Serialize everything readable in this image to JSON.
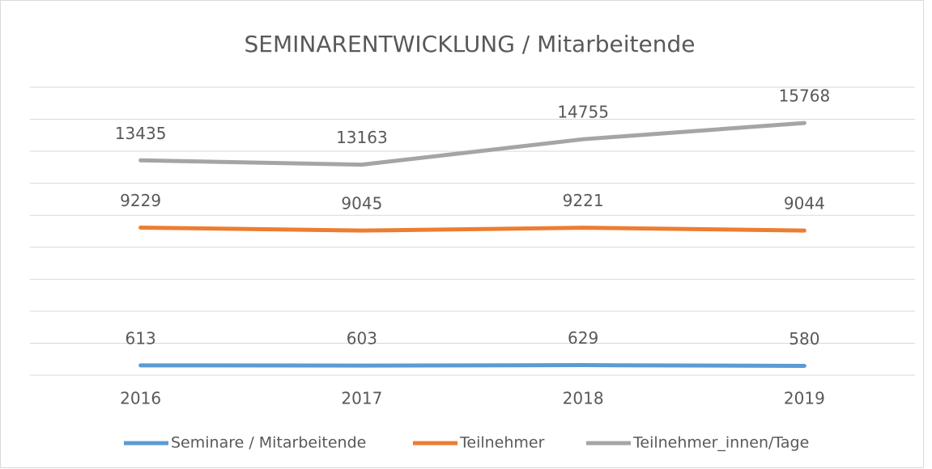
{
  "chart_data": {
    "type": "line",
    "title": "SEMINARENTWICKLUNG / Mitarbeitende",
    "categories": [
      "2016",
      "2017",
      "2018",
      "2019"
    ],
    "series": [
      {
        "name": "Seminare / Mitarbeitende",
        "color": "#5b9bd5",
        "values": [
          613,
          603,
          629,
          580
        ]
      },
      {
        "name": "Teilnehmer",
        "color": "#ed7d31",
        "values": [
          9229,
          9045,
          9221,
          9044
        ]
      },
      {
        "name": "Teilnehmer_innen/Tage",
        "color": "#a5a5a5",
        "values": [
          13435,
          13163,
          14755,
          15768
        ]
      }
    ],
    "ylim": [
      0,
      18000
    ],
    "yticks": [
      0,
      2000,
      4000,
      6000,
      8000,
      10000,
      12000,
      14000,
      16000,
      18000
    ],
    "grid": true,
    "legend": "bottom"
  }
}
